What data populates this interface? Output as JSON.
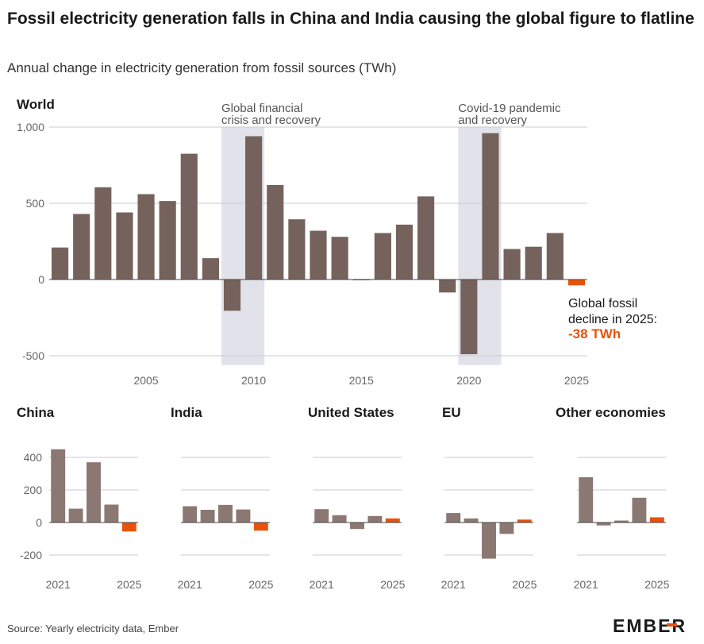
{
  "title": "Fossil electricity generation falls in China and India causing the global figure to flatline",
  "subtitle": "Annual change in electricity generation from fossil sources (TWh)",
  "source": "Source: Yearly electricity data, Ember",
  "logo_text": "EMBER",
  "colors": {
    "bar": "#76625c",
    "bar_light": "#8b7873",
    "highlight": "#e8520a",
    "shade": "#e2e3ea",
    "grid": "#c9c9d4"
  },
  "annotations": {
    "gfc": [
      "Global financial",
      "crisis and recovery"
    ],
    "covid": [
      "Covid-19 pandemic",
      "and recovery"
    ],
    "callout": [
      "Global fossil",
      "decline in 2025:"
    ],
    "callout_value": "-38 TWh"
  },
  "chart_data": [
    {
      "type": "bar",
      "title": "World",
      "x": [
        2001,
        2002,
        2003,
        2004,
        2005,
        2006,
        2007,
        2008,
        2009,
        2010,
        2011,
        2012,
        2013,
        2014,
        2015,
        2016,
        2017,
        2018,
        2019,
        2020,
        2021,
        2022,
        2023,
        2024,
        2025
      ],
      "values": [
        210,
        430,
        605,
        440,
        560,
        515,
        825,
        140,
        -205,
        940,
        620,
        395,
        320,
        280,
        -5,
        305,
        360,
        545,
        -85,
        -490,
        960,
        200,
        215,
        305,
        -38
      ],
      "highlight_x": 2025,
      "yticks": [
        1000,
        500,
        0,
        -500
      ],
      "ytick_labels": [
        "1,000",
        "500",
        "0",
        "-500"
      ],
      "xticks": [
        2005,
        2010,
        2015,
        2020,
        2025
      ],
      "ylim": [
        -530,
        1000
      ],
      "shaded_ranges": [
        [
          2008.5,
          2010.5
        ],
        [
          2019.5,
          2021.5
        ]
      ]
    },
    {
      "type": "bar",
      "title": "China",
      "x": [
        2021,
        2022,
        2023,
        2024,
        2025
      ],
      "values": [
        450,
        85,
        370,
        110,
        -55
      ],
      "yticks": [
        400,
        200,
        0,
        -200
      ],
      "ytick_labels": [
        "400",
        "200",
        "0",
        "-200"
      ],
      "xticks": [
        2021,
        2025
      ]
    },
    {
      "type": "bar",
      "title": "India",
      "x": [
        2021,
        2022,
        2023,
        2024,
        2025
      ],
      "values": [
        100,
        78,
        108,
        80,
        -50
      ],
      "yticks": [
        400,
        200,
        0,
        -200
      ],
      "xticks": [
        2021,
        2025
      ]
    },
    {
      "type": "bar",
      "title": "United States",
      "x": [
        2021,
        2022,
        2023,
        2024,
        2025
      ],
      "values": [
        82,
        45,
        -40,
        40,
        25
      ],
      "yticks": [
        400,
        200,
        0,
        -200
      ],
      "xticks": [
        2021,
        2025
      ]
    },
    {
      "type": "bar",
      "title": "EU",
      "x": [
        2021,
        2022,
        2023,
        2024,
        2025
      ],
      "values": [
        58,
        25,
        -222,
        -70,
        18
      ],
      "yticks": [
        400,
        200,
        0,
        -200
      ],
      "xticks": [
        2021,
        2025
      ]
    },
    {
      "type": "bar",
      "title": "Other economies",
      "x": [
        2021,
        2022,
        2023,
        2024,
        2025
      ],
      "values": [
        278,
        -18,
        12,
        152,
        32
      ],
      "yticks": [
        400,
        200,
        0,
        -200
      ],
      "xticks": [
        2021,
        2025
      ]
    }
  ]
}
